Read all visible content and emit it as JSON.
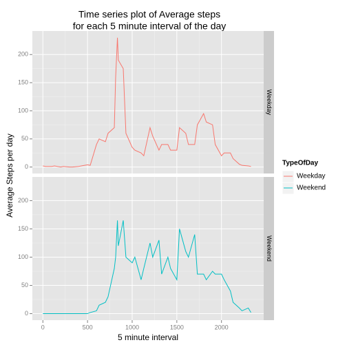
{
  "chart_data": {
    "type": "line",
    "title": [
      "Time series plot of Average steps",
      "for each 5 minute interval of the day"
    ],
    "xlabel": "5 minute interval",
    "ylabel": "Average Steps per day",
    "legend_title": "TypeOfDay",
    "legend": "right",
    "grid": true,
    "x": [
      0,
      30,
      100,
      130,
      200,
      230,
      300,
      330,
      400,
      430,
      500,
      530,
      600,
      630,
      700,
      730,
      800,
      815,
      835,
      845,
      900,
      930,
      1000,
      1030,
      1100,
      1130,
      1200,
      1230,
      1300,
      1330,
      1400,
      1430,
      1500,
      1530,
      1600,
      1630,
      1700,
      1730,
      1800,
      1830,
      1900,
      1930,
      2000,
      2030,
      2100,
      2130,
      2200,
      2230,
      2300,
      2330
    ],
    "series": [
      {
        "name": "Weekday",
        "color": "#f8766d",
        "values": [
          2,
          1,
          1,
          2,
          0,
          1,
          0,
          0,
          1,
          2,
          4,
          3,
          40,
          50,
          45,
          60,
          70,
          160,
          230,
          190,
          175,
          60,
          35,
          30,
          25,
          20,
          70,
          55,
          30,
          40,
          40,
          30,
          30,
          70,
          60,
          40,
          40,
          75,
          95,
          80,
          75,
          40,
          20,
          25,
          25,
          15,
          5,
          3,
          2,
          1
        ]
      },
      {
        "name": "Weekend",
        "color": "#00bfc4",
        "values": [
          0,
          0,
          0,
          0,
          0,
          0,
          0,
          0,
          0,
          0,
          0,
          2,
          5,
          15,
          20,
          30,
          80,
          100,
          165,
          120,
          165,
          100,
          90,
          100,
          60,
          80,
          125,
          100,
          130,
          70,
          100,
          80,
          60,
          150,
          110,
          100,
          140,
          70,
          70,
          60,
          75,
          70,
          70,
          60,
          40,
          20,
          10,
          5,
          10,
          2
        ]
      }
    ],
    "xlim": [
      -117.75,
      2472.75
    ],
    "xticks": [
      0,
      500,
      1000,
      1500,
      2000
    ],
    "ylim": [
      -11.5,
      241.9
    ],
    "yticks": [
      0,
      50,
      100,
      150,
      200
    ]
  }
}
